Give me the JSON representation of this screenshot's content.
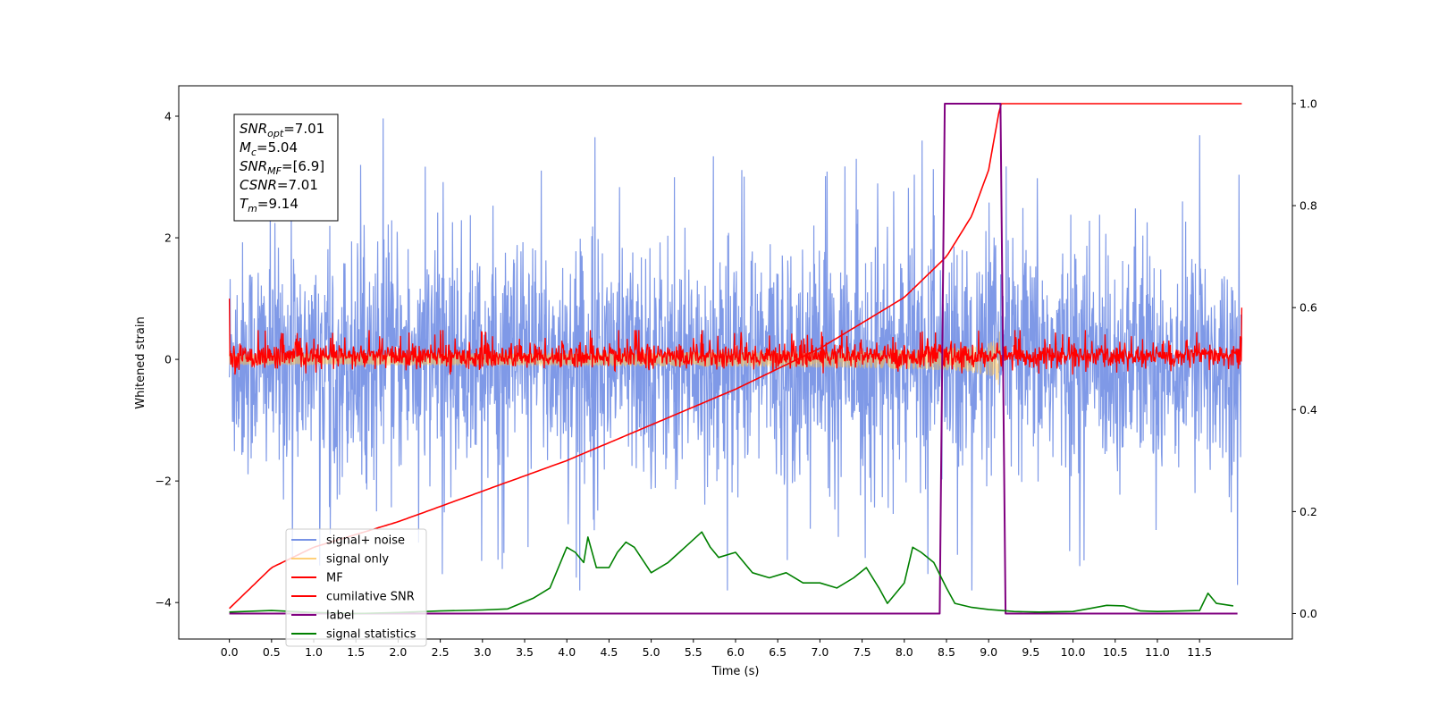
{
  "chart_data": {
    "type": "line",
    "xlabel": "Time (s)",
    "ylabel_left": "Whitened strain",
    "xlim": [
      -0.6,
      12.6
    ],
    "ylim_left": [
      -4.6,
      4.5
    ],
    "ylim_right": [
      -0.05,
      1.035
    ],
    "x_ticks": [
      "0.0",
      "0.5",
      "1.0",
      "1.5",
      "2.0",
      "2.5",
      "3.0",
      "3.5",
      "4.0",
      "4.5",
      "5.0",
      "5.5",
      "6.0",
      "6.5",
      "7.0",
      "7.5",
      "8.0",
      "8.5",
      "9.0",
      "9.5",
      "10.0",
      "10.5",
      "11.0",
      "11.5"
    ],
    "y_ticks_left": [
      "4",
      "2",
      "0",
      "−2",
      "−4"
    ],
    "y_ticks_right": [
      "1.0",
      "0.8",
      "0.6",
      "0.4",
      "0.2",
      "0.0"
    ],
    "grid": false,
    "legend_position": "lower-left",
    "annotation_lines": [
      {
        "base": "SNR",
        "sub": "opt",
        "value": "=7.01"
      },
      {
        "base": "M",
        "sub": "c",
        "value": "=5.04"
      },
      {
        "base": "SNR",
        "sub": "MF",
        "value": "=[6.9]"
      },
      {
        "base": "CSNR",
        "sub": "",
        "value": "=7.01"
      },
      {
        "base": "T",
        "sub": "m",
        "value": "=9.14"
      }
    ],
    "series": [
      {
        "name": "signal+ noise",
        "color": "#7893e6",
        "axis": "left",
        "description_range": [
          -3.8,
          4.1
        ],
        "typical_band": [
          -2.1,
          2.1
        ]
      },
      {
        "name": "signal only",
        "color": "#ffc14d",
        "axis": "left",
        "chirp_end_time": 9.14,
        "peak_amplitude": 0.65
      },
      {
        "name": "MF",
        "color": "#ff0000",
        "axis": "left",
        "typical_band": [
          -0.2,
          0.4
        ]
      },
      {
        "name": "cumilative SNR",
        "color": "#ff0000",
        "axis": "right",
        "x": [
          0.0,
          0.5,
          1.0,
          2.0,
          3.0,
          4.0,
          5.0,
          6.0,
          7.0,
          7.5,
          8.0,
          8.5,
          8.8,
          9.0,
          9.14,
          12.0
        ],
        "y": [
          0.01,
          0.09,
          0.13,
          0.18,
          0.24,
          0.3,
          0.37,
          0.44,
          0.52,
          0.57,
          0.62,
          0.7,
          0.78,
          0.87,
          1.0,
          1.0
        ]
      },
      {
        "name": "label",
        "color": "#800080",
        "axis": "right",
        "x": [
          0.0,
          8.42,
          8.48,
          9.14,
          9.2,
          11.95
        ],
        "y": [
          0.0,
          0.0,
          1.0,
          1.0,
          0.0,
          0.0
        ]
      },
      {
        "name": "signal statistics",
        "color": "#008000",
        "axis": "right",
        "x": [
          0.0,
          0.5,
          1.0,
          1.5,
          2.0,
          2.5,
          3.0,
          3.3,
          3.6,
          3.8,
          4.0,
          4.1,
          4.2,
          4.25,
          4.35,
          4.5,
          4.6,
          4.7,
          4.8,
          5.0,
          5.2,
          5.4,
          5.6,
          5.7,
          5.8,
          6.0,
          6.2,
          6.4,
          6.6,
          6.8,
          7.0,
          7.2,
          7.4,
          7.55,
          7.7,
          7.8,
          8.0,
          8.1,
          8.2,
          8.35,
          8.5,
          8.6,
          8.8,
          9.0,
          9.3,
          9.6,
          10.0,
          10.2,
          10.4,
          10.6,
          10.8,
          11.0,
          11.3,
          11.5,
          11.6,
          11.7,
          11.9
        ],
        "y": [
          0.003,
          0.006,
          0.002,
          0.0,
          0.002,
          0.005,
          0.007,
          0.009,
          0.03,
          0.05,
          0.13,
          0.12,
          0.1,
          0.15,
          0.09,
          0.09,
          0.12,
          0.14,
          0.13,
          0.08,
          0.1,
          0.13,
          0.16,
          0.13,
          0.11,
          0.12,
          0.08,
          0.07,
          0.08,
          0.06,
          0.06,
          0.05,
          0.07,
          0.09,
          0.05,
          0.02,
          0.06,
          0.13,
          0.12,
          0.1,
          0.05,
          0.02,
          0.012,
          0.008,
          0.004,
          0.003,
          0.004,
          0.01,
          0.016,
          0.015,
          0.005,
          0.004,
          0.005,
          0.006,
          0.04,
          0.02,
          0.015
        ]
      }
    ]
  }
}
